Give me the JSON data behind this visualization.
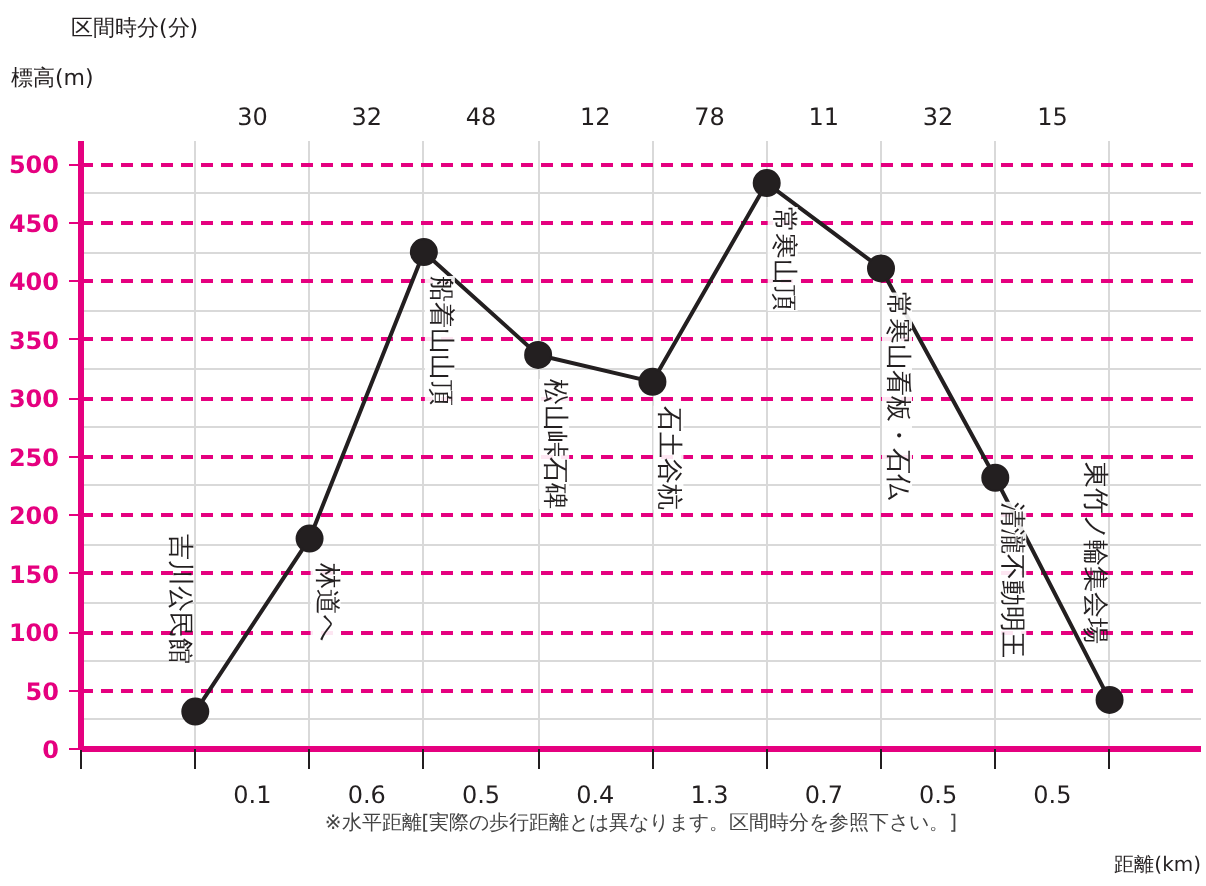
{
  "chart_data": {
    "type": "line",
    "title": "区間時分(分)",
    "xlabel": "距離(km)",
    "ylabel": "標高(m)",
    "categories": [
      "吉川公民館",
      "林道へ",
      "船着山山頂",
      "松山峠石碑",
      "石土谷杭",
      "常寒山頂",
      "常寒山看板・石仏",
      "清瀧不動明王",
      "東竹ノ輪集会場"
    ],
    "values": [
      32,
      180,
      425,
      337,
      314,
      484,
      411,
      232,
      42
    ],
    "color": "#231f20",
    "marker": "circle",
    "line_style": "solid",
    "grid": "y",
    "ylim": [
      0,
      520
    ],
    "yticks": [
      0,
      50,
      100,
      150,
      200,
      250,
      300,
      350,
      400,
      450,
      500
    ],
    "annotations": [
      "0.1",
      "0.6",
      "0.5",
      "0.4",
      "1.3",
      "0.7",
      "0.5",
      "0.5",
      "30",
      "32",
      "48",
      "12",
      "78",
      "11",
      "32",
      "15",
      "※水平距離[実際の歩行距離とは異なります。区間時分を参照下さい。]"
    ]
  }
}
